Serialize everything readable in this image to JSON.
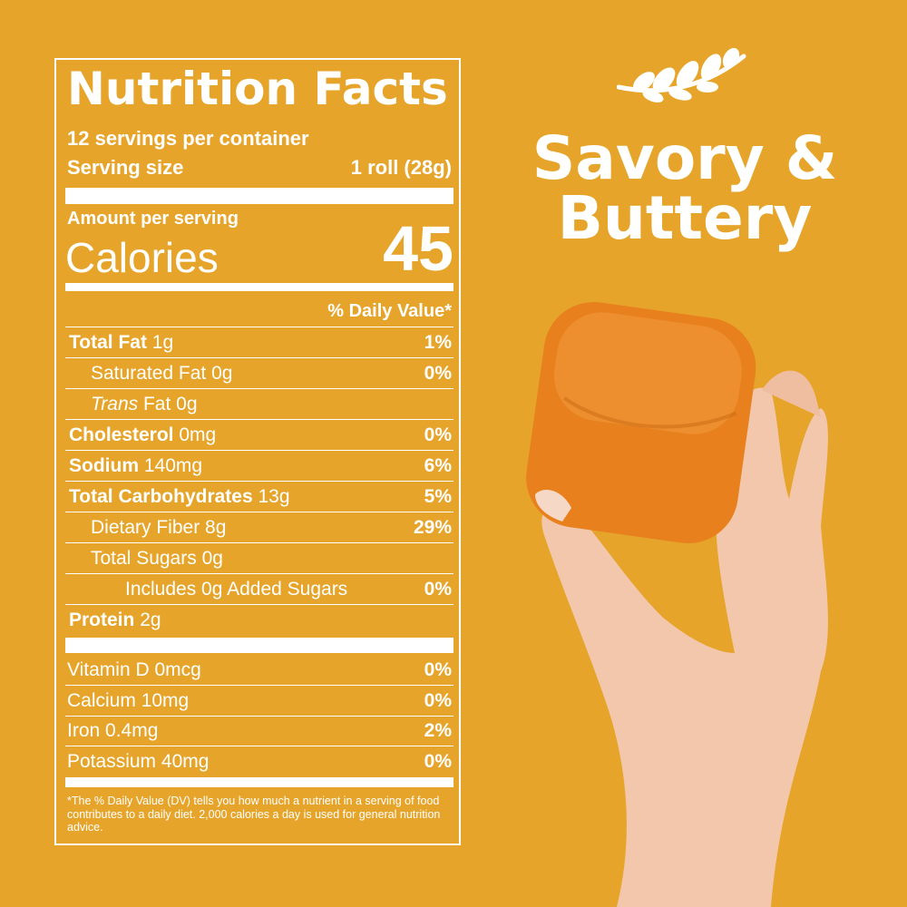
{
  "label": {
    "title": "Nutrition Facts",
    "servings": "12 servings per container",
    "serving_size_label": "Serving size",
    "serving_size": "1 roll (28g)",
    "amount_per_serving": "Amount per serving",
    "calories_label": "Calories",
    "calories": "45",
    "daily_value_header": "% Daily Value*",
    "rows": [
      {
        "name": "Total Fat",
        "amount": "1g",
        "dv": "1%"
      },
      {
        "name": "Saturated Fat",
        "amount": "0g",
        "dv": "0%"
      },
      {
        "name": "Trans",
        "amount": "Fat 0g"
      },
      {
        "name": "Cholesterol",
        "amount": "0mg",
        "dv": "0%"
      },
      {
        "name": "Sodium",
        "amount": "140mg",
        "dv": "6%"
      },
      {
        "name": "Total Carbohydrates",
        "amount": "13g",
        "dv": "5%"
      },
      {
        "name": "Dietary Fiber",
        "amount": "8g",
        "dv": "29%"
      },
      {
        "name": "Total Sugars",
        "amount": "0g"
      },
      {
        "name": "Includes 0g Added Sugars",
        "dv": "0%"
      },
      {
        "name": "Protein",
        "amount": "2g"
      }
    ],
    "vitamins": [
      {
        "name": "Vitamin D",
        "amount": "0mcg",
        "dv": "0%"
      },
      {
        "name": "Calcium",
        "amount": "10mg",
        "dv": "0%"
      },
      {
        "name": "Iron",
        "amount": "0.4mg",
        "dv": "2%"
      },
      {
        "name": "Potassium",
        "amount": "40mg",
        "dv": "0%"
      }
    ],
    "footnote": "*The % Daily Value (DV) tells you how much a nutrient in a serving of food contributes to a daily diet. 2,000 calories a day is used for general nutrition advice."
  },
  "tagline": {
    "line1": "Savory &",
    "line2": "Buttery"
  }
}
